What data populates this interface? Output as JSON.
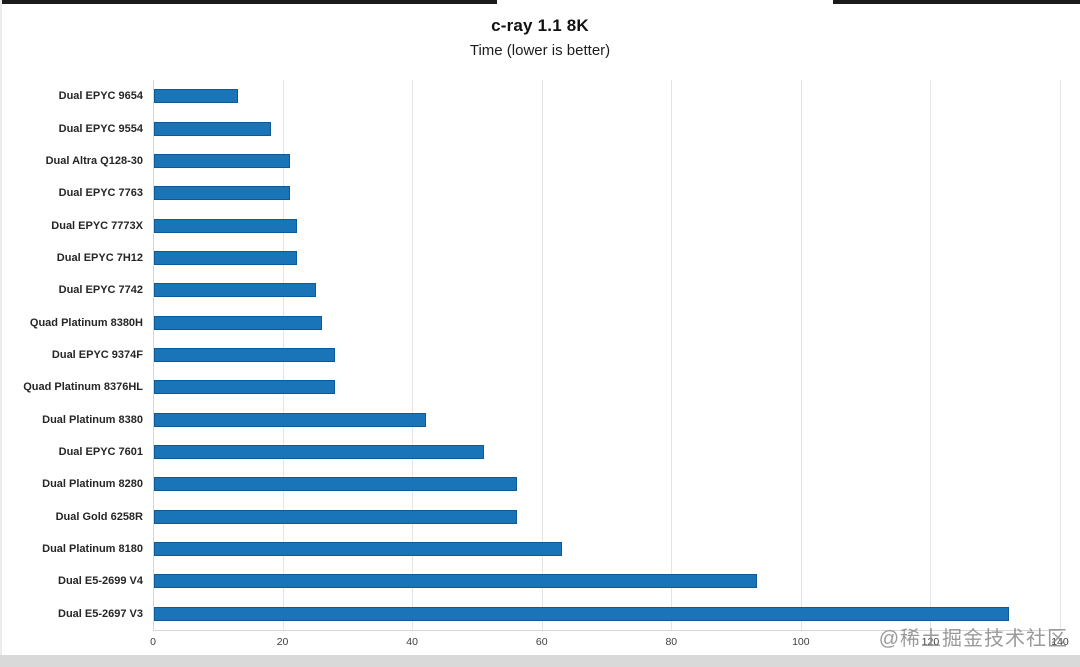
{
  "page": {
    "watermark": "@稀土掘金技术社区"
  },
  "chart_data": {
    "type": "bar",
    "orientation": "horizontal",
    "title": "c-ray 1.1 8K",
    "subtitle": "Time (lower is better)",
    "categories": [
      "Dual EPYC 9654",
      "Dual EPYC 9554",
      "Dual Altra Q128-30",
      "Dual EPYC 7763",
      "Dual EPYC 7773X",
      "Dual EPYC 7H12",
      "Dual EPYC 7742",
      "Quad Platinum 8380H",
      "Dual EPYC 9374F",
      "Quad Platinum 8376HL",
      "Dual Platinum 8380",
      "Dual EPYC 7601",
      "Dual Platinum 8280",
      "Dual Gold 6258R",
      "Dual Platinum 8180",
      "Dual E5-2699 V4",
      "Dual E5-2697 V3"
    ],
    "values": [
      13,
      18,
      21,
      21,
      22,
      22,
      25,
      26,
      28,
      28,
      42,
      51,
      56,
      56,
      63,
      93,
      132
    ],
    "xlabel": "",
    "ylabel": "",
    "xlim": [
      0,
      140
    ],
    "x_ticks": [
      0,
      20,
      40,
      60,
      80,
      100,
      120,
      140
    ],
    "grid": "vertical",
    "legend": "none",
    "bar_color": "#1a74b8",
    "bar_border_color": "#0d5a97"
  }
}
